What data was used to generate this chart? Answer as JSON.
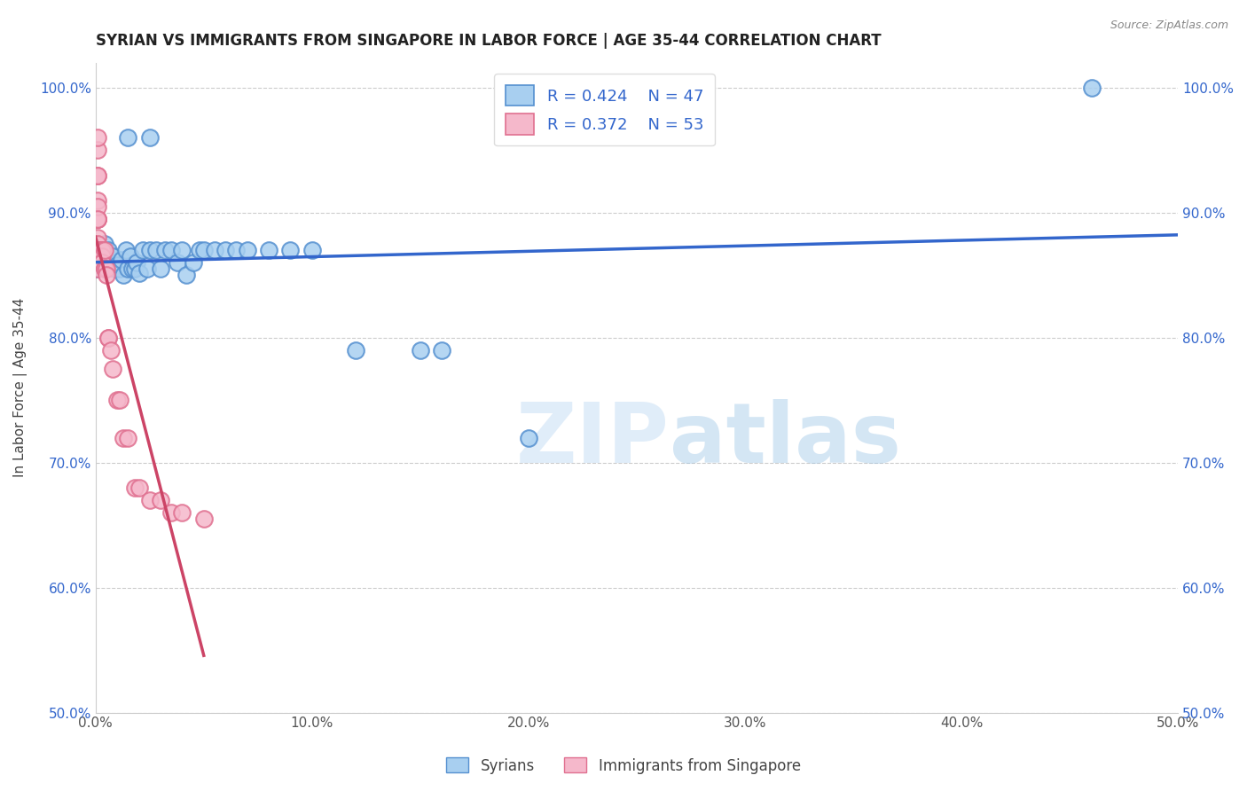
{
  "title": "SYRIAN VS IMMIGRANTS FROM SINGAPORE IN LABOR FORCE | AGE 35-44 CORRELATION CHART",
  "source": "Source: ZipAtlas.com",
  "ylabel": "In Labor Force | Age 35-44",
  "xlim": [
    0.0,
    0.5
  ],
  "ylim": [
    0.5,
    1.02
  ],
  "xticks": [
    0.0,
    0.1,
    0.2,
    0.3,
    0.4,
    0.5
  ],
  "yticks": [
    0.5,
    0.6,
    0.7,
    0.8,
    0.9,
    1.0
  ],
  "ytick_labels": [
    "50.0%",
    "60.0%",
    "70.0%",
    "80.0%",
    "90.0%",
    "100.0%"
  ],
  "xtick_labels": [
    "0.0%",
    "10.0%",
    "20.0%",
    "30.0%",
    "40.0%",
    "50.0%"
  ],
  "blue_R": 0.424,
  "blue_N": 47,
  "pink_R": 0.372,
  "pink_N": 53,
  "blue_color": "#a8cff0",
  "pink_color": "#f5b8cb",
  "blue_edge_color": "#5590d0",
  "pink_edge_color": "#e07090",
  "blue_line_color": "#3366cc",
  "pink_line_color": "#cc4466",
  "watermark_color": "#ddeeff",
  "blue_scatter_x": [
    0.001,
    0.002,
    0.003,
    0.004,
    0.005,
    0.006,
    0.007,
    0.008,
    0.009,
    0.01,
    0.011,
    0.012,
    0.013,
    0.014,
    0.015,
    0.016,
    0.017,
    0.018,
    0.019,
    0.02,
    0.022,
    0.024,
    0.025,
    0.025,
    0.028,
    0.03,
    0.032,
    0.035,
    0.038,
    0.04,
    0.042,
    0.045,
    0.048,
    0.05,
    0.055,
    0.06,
    0.065,
    0.07,
    0.08,
    0.09,
    0.1,
    0.12,
    0.15,
    0.16,
    0.2,
    0.46,
    0.015
  ],
  "blue_scatter_y": [
    0.855,
    0.86,
    0.87,
    0.875,
    0.855,
    0.87,
    0.858,
    0.865,
    0.855,
    0.858,
    0.855,
    0.862,
    0.85,
    0.87,
    0.855,
    0.865,
    0.855,
    0.855,
    0.86,
    0.852,
    0.87,
    0.855,
    0.87,
    0.96,
    0.87,
    0.855,
    0.87,
    0.87,
    0.86,
    0.87,
    0.85,
    0.86,
    0.87,
    0.87,
    0.87,
    0.87,
    0.87,
    0.87,
    0.87,
    0.87,
    0.87,
    0.79,
    0.79,
    0.79,
    0.72,
    1.0,
    0.96
  ],
  "pink_scatter_x": [
    0.001,
    0.001,
    0.001,
    0.001,
    0.001,
    0.001,
    0.001,
    0.001,
    0.001,
    0.001,
    0.001,
    0.001,
    0.001,
    0.001,
    0.001,
    0.001,
    0.001,
    0.001,
    0.001,
    0.001,
    0.002,
    0.002,
    0.002,
    0.002,
    0.002,
    0.002,
    0.002,
    0.002,
    0.003,
    0.003,
    0.003,
    0.003,
    0.003,
    0.004,
    0.004,
    0.004,
    0.005,
    0.005,
    0.006,
    0.006,
    0.007,
    0.008,
    0.01,
    0.011,
    0.013,
    0.015,
    0.018,
    0.02,
    0.025,
    0.03,
    0.035,
    0.04,
    0.05
  ],
  "pink_scatter_y": [
    0.855,
    0.87,
    0.875,
    0.895,
    0.895,
    0.91,
    0.95,
    0.96,
    0.93,
    0.93,
    0.895,
    0.905,
    0.895,
    0.875,
    0.88,
    0.87,
    0.87,
    0.87,
    0.87,
    0.875,
    0.87,
    0.87,
    0.87,
    0.87,
    0.865,
    0.87,
    0.86,
    0.87,
    0.87,
    0.87,
    0.865,
    0.86,
    0.86,
    0.87,
    0.855,
    0.855,
    0.855,
    0.85,
    0.8,
    0.8,
    0.79,
    0.775,
    0.75,
    0.75,
    0.72,
    0.72,
    0.68,
    0.68,
    0.67,
    0.67,
    0.66,
    0.66,
    0.655
  ]
}
